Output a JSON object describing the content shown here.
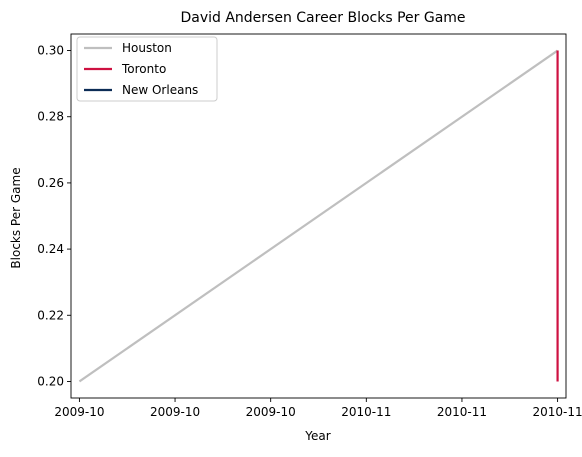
{
  "chart_data": {
    "type": "line",
    "title": "David Andersen Career Blocks Per Game",
    "xlabel": "Year",
    "ylabel": "Blocks Per Game",
    "x_tick_labels": [
      "2009-10",
      "2009-10",
      "2009-10",
      "2010-11",
      "2010-11",
      "2010-11"
    ],
    "xlim": [
      -0.088,
      5.088
    ],
    "ylim": [
      0.195,
      0.305
    ],
    "y_ticks": [
      0.2,
      0.22,
      0.24,
      0.26,
      0.28,
      0.3
    ],
    "y_tick_labels": [
      "0.20",
      "0.22",
      "0.24",
      "0.26",
      "0.28",
      "0.30"
    ],
    "grid": false,
    "legend_position": "top-left",
    "series": [
      {
        "name": "Houston",
        "color": "#BFBFBF",
        "x": [
          0,
          5
        ],
        "y": [
          0.2,
          0.3
        ]
      },
      {
        "name": "Toronto",
        "color": "#CE1141",
        "x": [
          5,
          5
        ],
        "y": [
          0.3,
          0.2
        ]
      },
      {
        "name": "New Orleans",
        "color": "#0C2C56",
        "x": [],
        "y": []
      }
    ]
  }
}
